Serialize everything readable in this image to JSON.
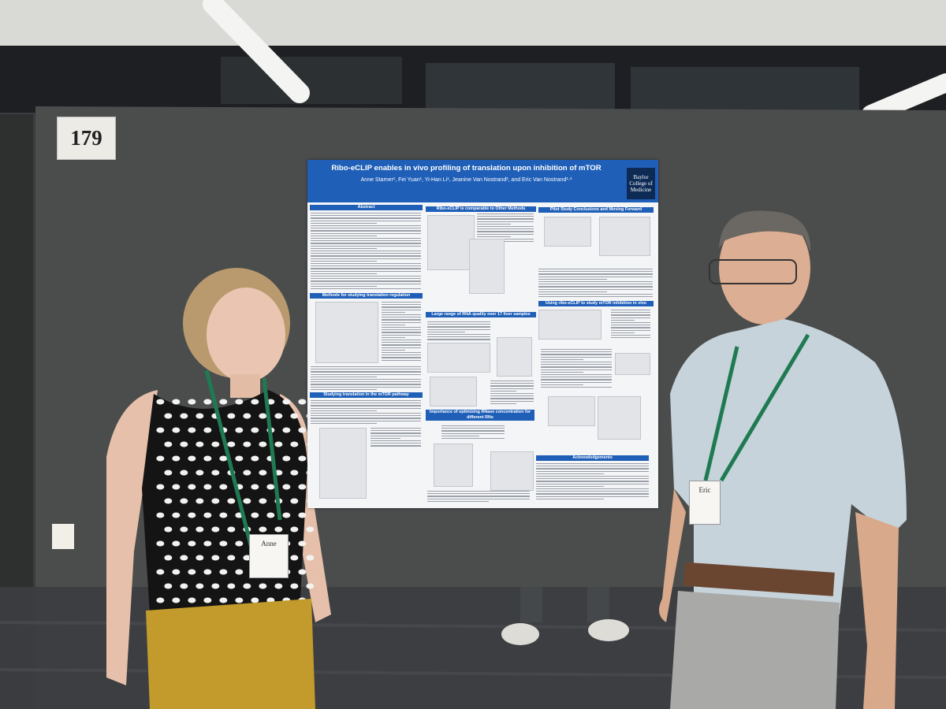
{
  "booth_number": "179",
  "poster": {
    "title": "Ribo-eCLIP enables in vivo profiling of translation upon inhibition of mTOR",
    "authors": "Anne Starner¹, Fei Yuan¹, Yi-Han Li¹, Jeanine Van Nostrand², and Eric Van Nostrand¹·³",
    "logo": "Baylor College of Medicine",
    "sections": [
      "Abstract",
      "Methods for studying translation regulation",
      "Studying translation in the mTOR pathway",
      "Ribo-eCLIP is comparable to Other Methods",
      "Large range of RNA quality over 17 liver samples",
      "Importance of optimizing RNase concentration for different RNs",
      "Pilot Study Conclusions and Moving Forward",
      "Using ribo-eCLIP to study mTOR inhibition in vivo",
      "Acknowledgements"
    ]
  },
  "badges": [
    "Anne",
    "Eric"
  ]
}
